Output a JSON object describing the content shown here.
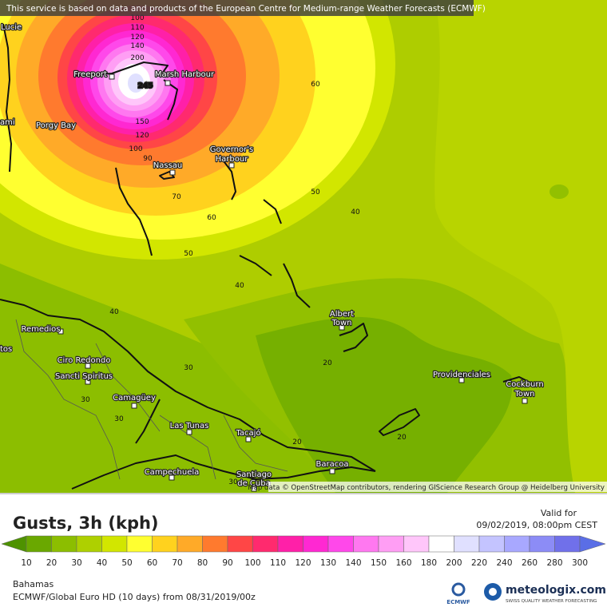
{
  "header": {
    "notice": "This service is based on data and products of the European Centre for Medium-range Weather Forecasts (ECMWF)"
  },
  "map": {
    "places": [
      "Lucie",
      "ami",
      "Freeport",
      "Marsh Harbour",
      "Porgy Bay",
      "Governor's",
      "Harbour",
      "Nassau",
      "Albert",
      "Town",
      "Remedios",
      "tos",
      "Ciro Redondo",
      "Sancti Spiritus",
      "Camagüey",
      "Las Tunas",
      "Tacajó",
      "Providenciales",
      "Cockburn",
      "Town",
      "Campechuela",
      "Baracoa",
      "Santiago",
      "de Cuba"
    ],
    "contour_labels": [
      245,
      200,
      100,
      110,
      120,
      140,
      150,
      120,
      100,
      90,
      70,
      60,
      60,
      50,
      50,
      40,
      40,
      40,
      30,
      30,
      30,
      20,
      20,
      20,
      30
    ],
    "attribution": "Map data © OpenStreetMap contributors, rendering GIScience Research Group @ Heidelberg University"
  },
  "footer": {
    "title": "Gusts, 3h (kph)",
    "valid_label": "Valid for",
    "valid_time": "09/02/2019, 08:00pm CEST",
    "region": "Bahamas",
    "model": "ECMWF/Global Euro HD (10 days) from 08/31/2019/00z",
    "ecmwf_logo": "ECMWF",
    "brand": "meteologix.com",
    "tagline": "SWISS QUALITY WEATHER FORECASTING"
  },
  "legend": {
    "ticks": [
      10,
      20,
      30,
      40,
      50,
      60,
      70,
      80,
      90,
      100,
      110,
      120,
      130,
      140,
      150,
      160,
      180,
      200,
      220,
      240,
      260,
      280,
      300
    ],
    "colors": [
      "#6aa800",
      "#8cbe00",
      "#aed000",
      "#d2e600",
      "#ffff30",
      "#ffd21e",
      "#ffaa28",
      "#ff7a2e",
      "#ff4646",
      "#ff2a6e",
      "#ff20a8",
      "#ff28d2",
      "#ff48ea",
      "#ff78f0",
      "#ff9ef4",
      "#ffc6fa",
      "#ffffff",
      "#e0e0ff",
      "#c4c4ff",
      "#a8a8ff",
      "#8c8cf6",
      "#7070ea"
    ],
    "under_color": "#4e9200",
    "over_color": "#5a6ee6"
  }
}
